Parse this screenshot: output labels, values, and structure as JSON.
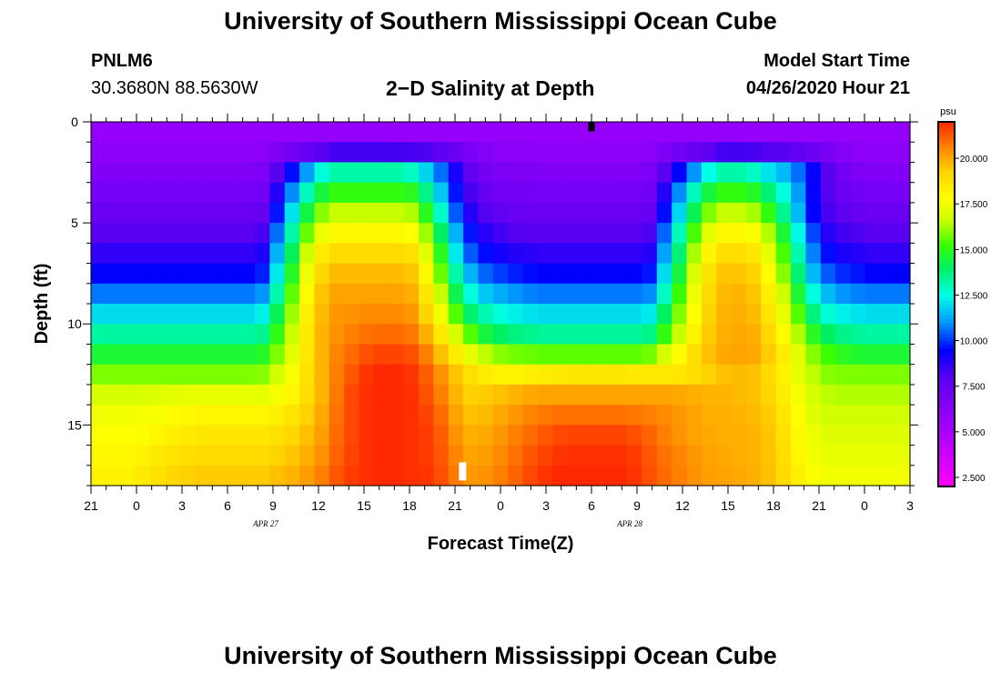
{
  "header": {
    "title": "University of Southern Mississippi Ocean Cube",
    "station_id": "PNLM6",
    "station_coords": "30.3680N 88.5630W",
    "model_start_label": "Model Start Time",
    "model_start_value": "04/26/2020 Hour 21"
  },
  "footer": {
    "title": "University of Southern Mississippi Ocean Cube"
  },
  "colors": {
    "background": "#ffffff",
    "frame": "#000000",
    "marker_top": "#000000",
    "marker_bottom": "#ffffff"
  },
  "chart_data": {
    "type": "heatmap",
    "title": "2−D Salinity at Depth",
    "xlabel": "Forecast Time(Z)",
    "ylabel": "Depth (ft)",
    "x_ticks": [
      "21",
      "0",
      "3",
      "6",
      "9",
      "12",
      "15",
      "18",
      "21",
      "0",
      "3",
      "6",
      "9",
      "12",
      "15",
      "18",
      "21",
      "0",
      "3"
    ],
    "x_hours": [
      0,
      54
    ],
    "x_date_labels": [
      {
        "label": "APR 27",
        "hour": 12
      },
      {
        "label": "APR 28",
        "hour": 36
      }
    ],
    "y_ticks": [
      "0",
      "5",
      "10",
      "15"
    ],
    "y_tick_values": [
      0,
      5,
      10,
      15
    ],
    "ylim": [
      0,
      18
    ],
    "colorbar": {
      "unit": "psu",
      "ticks": [
        "2.500",
        "5.000",
        "7.500",
        "10.000",
        "12.500",
        "15.000",
        "17.500",
        "20.000"
      ],
      "tick_values": [
        2.5,
        5,
        7.5,
        10,
        12.5,
        15,
        17.5,
        20
      ],
      "range": [
        2,
        22
      ]
    },
    "depth_levels_ft": [
      0.5,
      1.5,
      2.5,
      3.5,
      4.5,
      5.5,
      6.5,
      7.5,
      8.5,
      9.5,
      10.5,
      11.5,
      12.5,
      13.5,
      14.5,
      15.5,
      16.5,
      17.5
    ],
    "salinity_psu": [
      [
        5.8,
        5.8,
        5.8,
        5.8,
        5.8,
        5.8,
        5.8,
        5.8,
        5.8,
        5.8,
        5.8,
        5.8,
        5.8,
        5.8,
        5.8,
        5.8,
        5.8,
        5.8,
        5.8,
        5.8,
        5.8,
        5.8,
        5.8,
        5.8,
        5.8,
        5.8,
        5.8,
        5.8,
        5.8,
        5.8,
        5.8,
        5.8,
        5.8,
        5.8,
        5.8,
        5.8,
        5.8,
        5.8,
        5.8,
        5.8,
        5.8,
        5.8,
        5.8,
        5.8,
        5.8,
        5.8,
        5.8,
        5.8,
        5.8,
        5.8,
        5.8,
        5.8,
        5.8,
        5.8,
        5.8
      ],
      [
        6.1,
        6.1,
        6.1,
        6.1,
        6.1,
        6.1,
        6.1,
        6.1,
        6.1,
        6.1,
        6.1,
        6.2,
        6.6,
        7.1,
        7.5,
        8,
        8.4,
        8.4,
        8.4,
        8.4,
        8.4,
        8.3,
        8.2,
        7.9,
        7.4,
        6.8,
        6.4,
        6.2,
        6.2,
        6.2,
        6.1,
        6.1,
        6.1,
        6.1,
        6.1,
        6.1,
        6.1,
        6.2,
        6.6,
        7.1,
        7.5,
        7.9,
        8.4,
        8.4,
        8.3,
        8.1,
        8,
        7.7,
        7.3,
        6.8,
        6.4,
        6.2,
        6.1,
        6.1,
        6.1
      ],
      [
        6.5,
        6.5,
        6.5,
        6.5,
        6.5,
        6.5,
        6.5,
        6.5,
        6.5,
        6.5,
        6.5,
        6.7,
        8,
        9.6,
        11.1,
        12.6,
        13.2,
        13.2,
        13.2,
        13.2,
        13.2,
        12.9,
        11.9,
        10.6,
        9.1,
        7.7,
        7,
        6.7,
        6.6,
        6.6,
        6.5,
        6.5,
        6.5,
        6.5,
        6.5,
        6.5,
        6.5,
        6.7,
        8,
        9.5,
        11,
        12.5,
        13.2,
        13.2,
        12.9,
        12.1,
        11.5,
        10.6,
        9.4,
        8,
        7.1,
        6.7,
        6.5,
        6.5,
        6.5
      ],
      [
        6.9,
        6.9,
        6.9,
        6.9,
        6.9,
        6.9,
        6.9,
        6.9,
        6.9,
        6.9,
        6.9,
        7.1,
        8.9,
        10.9,
        13,
        14.5,
        15.1,
        15.1,
        15.1,
        15.1,
        15.1,
        14.9,
        13.6,
        11.7,
        9.7,
        8.3,
        7.5,
        7.1,
        7,
        7,
        6.9,
        6.9,
        6.9,
        6.9,
        6.9,
        6.9,
        6.9,
        7.1,
        8.9,
        10.9,
        13,
        14.5,
        15.1,
        15.1,
        14.8,
        13.8,
        12.6,
        11.1,
        9.4,
        8.1,
        7.4,
        7.1,
        6.9,
        6.9,
        6.9
      ],
      [
        7.4,
        7.4,
        7.4,
        7.4,
        7.4,
        7.4,
        7.4,
        7.4,
        7.4,
        7.4,
        7.4,
        7.6,
        9.7,
        12.1,
        14.4,
        16,
        16.6,
        16.6,
        16.6,
        16.6,
        16.6,
        16.4,
        14.9,
        12.8,
        10.4,
        8.9,
        8.1,
        7.7,
        7.5,
        7.4,
        7.4,
        7.4,
        7.4,
        7.4,
        7.4,
        7.4,
        7.4,
        7.6,
        9.6,
        11.9,
        14.2,
        15.9,
        16.6,
        16.6,
        16.3,
        15.1,
        13.5,
        11.5,
        9.5,
        8.3,
        7.8,
        7.6,
        7.4,
        7.4,
        7.4
      ],
      [
        8,
        8,
        8,
        8,
        8,
        8,
        8,
        8,
        8,
        8,
        8,
        8.3,
        10.6,
        13.2,
        15.7,
        17.4,
        18,
        18,
        18,
        18,
        18,
        17.8,
        16.2,
        14,
        11.4,
        9.7,
        8.8,
        8.4,
        8.1,
        8,
        8,
        8,
        8,
        8,
        8,
        8,
        8,
        8.2,
        10.5,
        13,
        15.4,
        17.2,
        18,
        18,
        17.7,
        16.4,
        14.6,
        12.4,
        10.2,
        8.9,
        8.4,
        8.2,
        8,
        8,
        8
      ],
      [
        8.7,
        8.7,
        8.7,
        8.7,
        8.7,
        8.7,
        8.7,
        8.7,
        8.7,
        8.7,
        8.7,
        9,
        11.4,
        14.1,
        16.7,
        18.4,
        19,
        19,
        19,
        19,
        19,
        18.8,
        17.2,
        14.9,
        12.2,
        10.4,
        9.6,
        9.2,
        8.9,
        8.8,
        8.7,
        8.7,
        8.7,
        8.7,
        8.7,
        8.7,
        8.7,
        8.9,
        11.2,
        13.8,
        16.3,
        18.1,
        18.9,
        18.9,
        18.6,
        17.3,
        15.4,
        13.1,
        10.8,
        9.6,
        9.1,
        8.9,
        8.7,
        8.7,
        8.7
      ],
      [
        9.5,
        9.5,
        9.5,
        9.5,
        9.5,
        9.5,
        9.5,
        9.5,
        9.5,
        9.5,
        9.5,
        9.8,
        12.2,
        14.8,
        17.4,
        19.1,
        19.7,
        19.7,
        19.7,
        19.7,
        19.7,
        19.5,
        18,
        15.7,
        13.2,
        11.4,
        10.5,
        10.1,
        9.8,
        9.6,
        9.5,
        9.5,
        9.5,
        9.5,
        9.5,
        9.5,
        9.5,
        9.7,
        12,
        14.5,
        17,
        18.7,
        19.5,
        19.5,
        19.2,
        17.9,
        16,
        13.8,
        11.5,
        10.4,
        9.9,
        9.7,
        9.5,
        9.5,
        9.5
      ],
      [
        10.7,
        10.7,
        10.7,
        10.7,
        10.7,
        10.7,
        10.7,
        10.7,
        10.7,
        10.7,
        10.7,
        11,
        13.2,
        15.6,
        17.9,
        19.5,
        20.1,
        20.1,
        20.1,
        20.1,
        20.1,
        19.9,
        18.6,
        16.6,
        14.3,
        12.6,
        11.7,
        11.3,
        11,
        10.8,
        10.7,
        10.7,
        10.7,
        10.7,
        10.7,
        10.7,
        10.7,
        10.9,
        12.9,
        15.2,
        17.4,
        19,
        19.7,
        19.8,
        19.5,
        18.3,
        16.7,
        14.6,
        12.6,
        11.5,
        11,
        10.8,
        10.7,
        10.7,
        10.7
      ],
      [
        12,
        12,
        12,
        12,
        12,
        12,
        12,
        12,
        12,
        12,
        12,
        12.3,
        14.2,
        16.2,
        18.3,
        19.7,
        20.3,
        20.4,
        20.5,
        20.5,
        20.5,
        20.3,
        19.2,
        17.5,
        15.5,
        13.9,
        13.1,
        12.6,
        12.3,
        12.1,
        12,
        12,
        12,
        12,
        12,
        12,
        12,
        12.2,
        14,
        15.9,
        17.8,
        19.2,
        19.8,
        19.9,
        19.7,
        18.7,
        17.3,
        15.5,
        13.7,
        12.7,
        12.3,
        12.1,
        12,
        12,
        12
      ],
      [
        13.3,
        13.3,
        13.3,
        13.3,
        13.3,
        13.3,
        13.3,
        13.3,
        13.3,
        13.3,
        13.3,
        13.5,
        15,
        16.7,
        18.5,
        19.8,
        20.4,
        20.7,
        20.9,
        21,
        21,
        20.8,
        19.9,
        18.5,
        16.9,
        15.5,
        14.5,
        14,
        13.7,
        13.5,
        13.4,
        13.4,
        13.4,
        13.4,
        13.4,
        13.4,
        13.4,
        13.6,
        15.1,
        16.6,
        18.2,
        19.4,
        19.9,
        20,
        19.9,
        19.1,
        17.9,
        16.4,
        14.9,
        14,
        13.6,
        13.4,
        13.3,
        13.3,
        13.3
      ],
      [
        14.6,
        14.6,
        14.6,
        14.6,
        14.6,
        14.6,
        14.6,
        14.6,
        14.6,
        14.6,
        14.6,
        14.8,
        15.9,
        17.2,
        18.6,
        19.8,
        20.6,
        21,
        21.4,
        21.6,
        21.6,
        21.4,
        20.7,
        19.6,
        18.4,
        17.3,
        16.5,
        16,
        15.8,
        15.7,
        15.6,
        15.6,
        15.6,
        15.6,
        15.6,
        15.6,
        15.6,
        15.8,
        16.9,
        17.9,
        18.9,
        19.6,
        20,
        20.1,
        20,
        19.4,
        18.4,
        17.2,
        16,
        15.3,
        14.9,
        14.7,
        14.6,
        14.6,
        14.6
      ],
      [
        15.9,
        15.9,
        15.9,
        15.9,
        15.9,
        15.9,
        15.9,
        15.9,
        15.9,
        15.9,
        15.9,
        16,
        16.8,
        17.7,
        18.8,
        19.8,
        20.7,
        21.3,
        21.8,
        22,
        22,
        21.8,
        21.2,
        20.4,
        19.5,
        18.8,
        18.4,
        18.2,
        18.2,
        18.3,
        18.4,
        18.5,
        18.6,
        18.6,
        18.6,
        18.6,
        18.5,
        18.5,
        18.5,
        18.6,
        18.9,
        19.3,
        19.6,
        19.7,
        19.6,
        19,
        18.2,
        17.3,
        16.5,
        16,
        15.9,
        15.9,
        15.9,
        15.9,
        15.9
      ],
      [
        16.9,
        16.9,
        16.9,
        17,
        17.1,
        17.2,
        17.3,
        17.3,
        17.3,
        17.3,
        17.3,
        17.3,
        17.6,
        18.1,
        18.9,
        19.8,
        20.8,
        21.5,
        21.9,
        22,
        22,
        21.9,
        21.4,
        20.7,
        19.8,
        19.3,
        19.4,
        19.6,
        19.8,
        20,
        20.1,
        20.1,
        20.1,
        20.1,
        20.1,
        20.1,
        20.1,
        20.1,
        20.1,
        20,
        19.9,
        19.8,
        19.8,
        19.7,
        19.6,
        19.2,
        18.4,
        17.6,
        16.9,
        16.5,
        16.4,
        16.4,
        16.4,
        16.4,
        16.4
      ],
      [
        17.5,
        17.5,
        17.5,
        17.6,
        17.7,
        17.9,
        18,
        18.1,
        18.1,
        18.1,
        18.1,
        18.1,
        18.3,
        18.7,
        19.3,
        20,
        20.9,
        21.5,
        21.9,
        22,
        22,
        21.9,
        21.6,
        21,
        20.1,
        19.6,
        19.7,
        20,
        20.3,
        20.6,
        20.8,
        20.9,
        20.9,
        20.9,
        20.9,
        20.9,
        20.8,
        20.7,
        20.5,
        20.3,
        20.1,
        19.9,
        19.9,
        19.8,
        19.7,
        19.4,
        18.6,
        17.8,
        17.1,
        16.8,
        16.8,
        16.8,
        16.8,
        16.8,
        16.8
      ],
      [
        17.8,
        17.8,
        17.8,
        17.9,
        18.1,
        18.3,
        18.5,
        18.6,
        18.6,
        18.6,
        18.6,
        18.6,
        18.8,
        19.1,
        19.6,
        20.2,
        21,
        21.5,
        21.9,
        22,
        22,
        21.9,
        21.7,
        21.2,
        20.4,
        19.9,
        20,
        20.3,
        20.7,
        21,
        21.3,
        21.5,
        21.6,
        21.6,
        21.6,
        21.6,
        21.4,
        21.1,
        20.7,
        20.4,
        20.1,
        20,
        19.9,
        19.9,
        19.8,
        19.5,
        18.8,
        18,
        17.4,
        17.1,
        17.1,
        17.1,
        17.1,
        17.1,
        17.1
      ],
      [
        18,
        18,
        18,
        18.2,
        18.5,
        18.7,
        18.9,
        19,
        19,
        19,
        19,
        19,
        19.2,
        19.5,
        19.9,
        20.4,
        21.1,
        21.6,
        21.9,
        22,
        22,
        21.9,
        21.7,
        21.3,
        20.6,
        20.1,
        20.2,
        20.5,
        20.9,
        21.3,
        21.6,
        21.8,
        21.9,
        21.9,
        21.9,
        21.9,
        21.7,
        21.3,
        20.9,
        20.6,
        20.3,
        20.1,
        20,
        19.9,
        19.8,
        19.5,
        18.9,
        18.1,
        17.5,
        17.3,
        17.3,
        17.3,
        17.3,
        17.3,
        17.3
      ],
      [
        18.2,
        18.2,
        18.2,
        18.5,
        18.8,
        19.1,
        19.3,
        19.4,
        19.4,
        19.4,
        19.4,
        19.4,
        19.6,
        19.8,
        20.2,
        20.7,
        21.3,
        21.7,
        21.9,
        22,
        22,
        21.9,
        21.8,
        21.4,
        20.8,
        20.3,
        20.4,
        20.7,
        21.1,
        21.5,
        21.8,
        22,
        22,
        22,
        22,
        22,
        21.8,
        21.4,
        21,
        20.7,
        20.4,
        20.2,
        20.1,
        20,
        19.9,
        19.6,
        19,
        18.3,
        17.7,
        17.5,
        17.5,
        17.5,
        17.5,
        17.5,
        17.5
      ]
    ],
    "markers": [
      {
        "hour": 33,
        "depth_ft": 0.25,
        "color": "black"
      },
      {
        "hour": 24.5,
        "depth_ft": 17.3,
        "color": "white"
      }
    ]
  }
}
